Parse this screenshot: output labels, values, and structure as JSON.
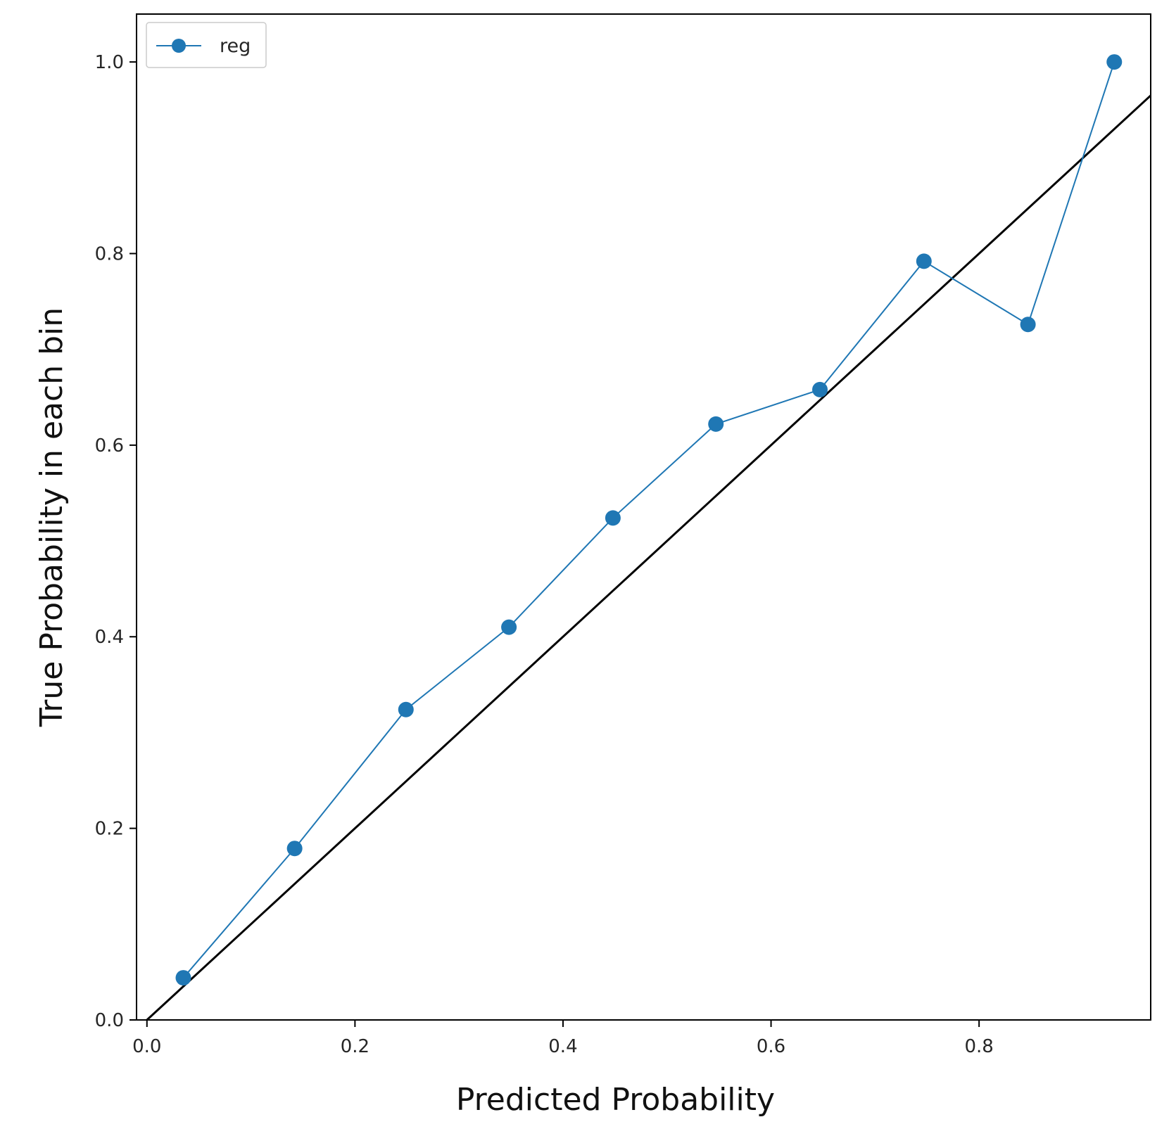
{
  "chart_data": {
    "type": "line",
    "xlabel": "Predicted Probability",
    "ylabel": "True Probability in each bin",
    "xlim": [
      -0.01,
      0.965
    ],
    "ylim": [
      0.0,
      1.05
    ],
    "xticks": [
      0.0,
      0.2,
      0.4,
      0.6,
      0.8
    ],
    "yticks": [
      0.0,
      0.2,
      0.4,
      0.6,
      0.8,
      1.0
    ],
    "xtick_labels": [
      "0.0",
      "0.2",
      "0.4",
      "0.6",
      "0.8"
    ],
    "ytick_labels": [
      "0.0",
      "0.2",
      "0.4",
      "0.6",
      "0.8",
      "1.0"
    ],
    "grid": false,
    "legend_position": "top-left",
    "reference_line": {
      "x": [
        0.0,
        1.0
      ],
      "y": [
        0.0,
        1.0
      ],
      "color": "#000000"
    },
    "series": [
      {
        "name": "reg",
        "color": "#1f77b4",
        "marker": "circle",
        "x": [
          0.035,
          0.142,
          0.249,
          0.348,
          0.448,
          0.547,
          0.647,
          0.747,
          0.847,
          0.93
        ],
        "y": [
          0.044,
          0.179,
          0.324,
          0.41,
          0.524,
          0.622,
          0.658,
          0.792,
          0.726,
          1.0
        ]
      }
    ]
  }
}
